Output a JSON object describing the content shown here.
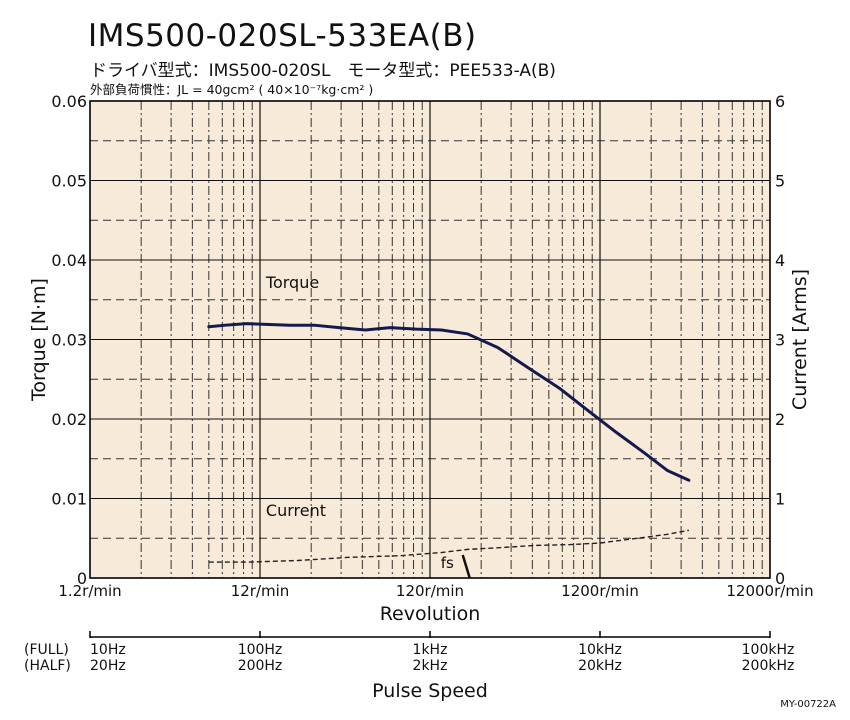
{
  "header": {
    "title": "IMS500-020SL-533EA(B)",
    "subtitle": "ドライバ型式：IMS500-020SL　モータ型式：PEE533-A(B)",
    "load_inertia": "外部負荷慣性：JL = 40gcm² ( 40×10⁻⁷kg·cm² )"
  },
  "doc_code": "MY-00722A",
  "colors": {
    "plot_background": "#f7ead9",
    "torque_line": "#151a4e",
    "current_line": "#222222",
    "grid_major": "#111111",
    "grid_minor": "#333333"
  },
  "chart_data": {
    "type": "line",
    "x_scale": "log",
    "xlabel": "Revolution",
    "ylabel_left": "Torque [N·m]",
    "ylabel_right": "Current [Arms]",
    "x_tick_labels": [
      "1.2r/min",
      "12r/min",
      "120r/min",
      "1200r/min",
      "12000r/min"
    ],
    "x_ticks": [
      1.2,
      12,
      120,
      1200,
      12000
    ],
    "xlim": [
      1.2,
      12000
    ],
    "ylim_left": [
      0,
      0.06
    ],
    "y_ticks_left": [
      0,
      0.01,
      0.02,
      0.03,
      0.04,
      0.05,
      0.06
    ],
    "y_tick_labels_left": [
      "0",
      "0.01",
      "0.02",
      "0.03",
      "0.04",
      "0.05",
      "0.06"
    ],
    "ylim_right": [
      0,
      6
    ],
    "y_ticks_right": [
      0,
      1,
      2,
      3,
      4,
      5,
      6
    ],
    "y_tick_labels_right": [
      "0",
      "1",
      "2",
      "3",
      "4",
      "5",
      "6"
    ],
    "grid": true,
    "series": [
      {
        "name": "Torque",
        "axis": "left",
        "x": [
          6,
          7.5,
          10,
          13,
          18,
          25,
          35,
          50,
          70,
          100,
          140,
          200,
          300,
          450,
          700,
          1000,
          1500,
          2200,
          3000,
          4000
        ],
        "y": [
          0.0316,
          0.0318,
          0.032,
          0.0319,
          0.0318,
          0.0318,
          0.0315,
          0.0312,
          0.0315,
          0.0313,
          0.0312,
          0.0307,
          0.029,
          0.0265,
          0.0238,
          0.0212,
          0.0183,
          0.0157,
          0.0135,
          0.0123
        ]
      },
      {
        "name": "Current",
        "axis": "right",
        "x": [
          6,
          10,
          20,
          40,
          80,
          140,
          200,
          300,
          500,
          800,
          1200,
          2000,
          3000,
          4000
        ],
        "y": [
          0.2,
          0.2,
          0.22,
          0.26,
          0.28,
          0.32,
          0.36,
          0.38,
          0.41,
          0.42,
          0.44,
          0.5,
          0.55,
          0.6
        ]
      }
    ],
    "annotations": [
      {
        "text": "fs",
        "x": 200,
        "y_right": 0.22
      }
    ],
    "secondary_axis": {
      "label": "Pulse Speed",
      "rows": [
        {
          "label": "(FULL)",
          "ticks": [
            "10Hz",
            "100Hz",
            "1kHz",
            "10kHz",
            "100kHz"
          ]
        },
        {
          "label": "(HALF)",
          "ticks": [
            "20Hz",
            "200Hz",
            "2kHz",
            "20kHz",
            "200kHz"
          ]
        }
      ]
    }
  }
}
